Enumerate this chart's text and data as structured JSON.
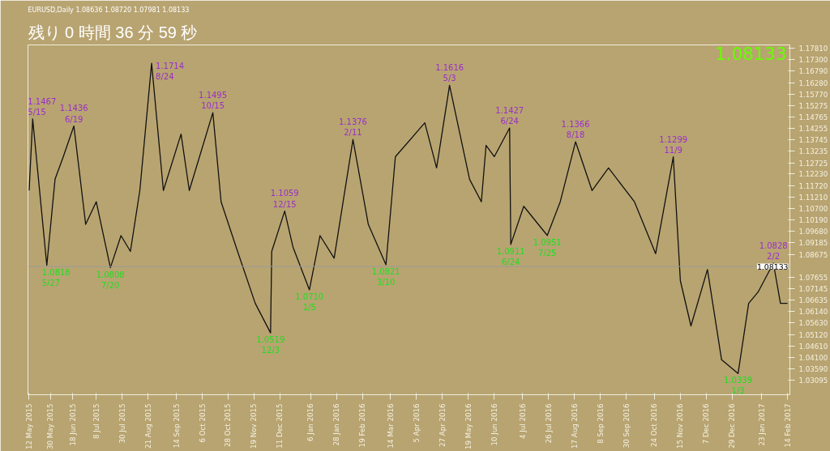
{
  "chart_data": {
    "type": "line",
    "title": "残り 0 時間 36 分 59 秒",
    "subtitle": "EURUSD,Daily 1.08636 1.08720 1.07981 1.08133",
    "x": [
      "2015-05-12",
      "2015-05-15",
      "2015-05-27",
      "2015-06-03",
      "2015-06-10",
      "2015-06-19",
      "2015-06-29",
      "2015-07-08",
      "2015-07-20",
      "2015-07-29",
      "2015-08-06",
      "2015-08-14",
      "2015-08-24",
      "2015-09-03",
      "2015-09-18",
      "2015-09-25",
      "2015-10-15",
      "2015-10-22",
      "2015-11-05",
      "2015-11-20",
      "2015-12-03",
      "2015-12-04",
      "2015-12-15",
      "2015-12-22",
      "2016-01-05",
      "2016-01-14",
      "2016-01-26",
      "2016-02-11",
      "2016-02-24",
      "2016-03-10",
      "2016-03-18",
      "2016-04-12",
      "2016-04-22",
      "2016-05-03",
      "2016-05-20",
      "2016-05-30",
      "2016-06-03",
      "2016-06-10",
      "2016-06-23",
      "2016-06-24",
      "2016-07-05",
      "2016-07-25",
      "2016-08-05",
      "2016-08-18",
      "2016-09-01",
      "2016-09-15",
      "2016-10-07",
      "2016-10-25",
      "2016-11-09",
      "2016-11-15",
      "2016-11-24",
      "2016-12-08",
      "2016-12-20",
      "2017-01-03",
      "2017-01-12",
      "2017-01-20",
      "2017-02-02",
      "2017-02-08",
      "2017-02-14"
    ],
    "series": [
      {
        "color": "#111111",
        "values": [
          1.115,
          1.1467,
          1.0818,
          1.12,
          1.13,
          1.1436,
          1.1,
          1.11,
          1.0808,
          1.095,
          1.088,
          1.115,
          1.1714,
          1.115,
          1.14,
          1.115,
          1.1495,
          1.11,
          1.088,
          1.065,
          1.0519,
          1.088,
          1.1059,
          1.09,
          1.071,
          1.095,
          1.085,
          1.1376,
          1.1,
          1.0821,
          1.13,
          1.145,
          1.125,
          1.1616,
          1.12,
          1.11,
          1.135,
          1.13,
          1.1427,
          1.0911,
          1.108,
          1.0951,
          1.11,
          1.1366,
          1.115,
          1.125,
          1.11,
          1.087,
          1.1299,
          1.075,
          1.055,
          1.08,
          1.04,
          1.0339,
          1.065,
          1.07,
          1.0828,
          1.065,
          1.065
        ]
      }
    ],
    "xlim": [
      "2015-05-11",
      "2017-02-16"
    ],
    "ylim": [
      1.0245,
      1.1795
    ],
    "xticks": [
      {
        "value": "2015-05-12",
        "label": "12 May 2015"
      },
      {
        "value": "2015-05-30",
        "label": "30 May 2015"
      },
      {
        "value": "2015-06-18",
        "label": "18 Jun 2015"
      },
      {
        "value": "2015-07-08",
        "label": "8 Jul 2015"
      },
      {
        "value": "2015-07-30",
        "label": "30 Jul 2015"
      },
      {
        "value": "2015-08-21",
        "label": "21 Aug 2015"
      },
      {
        "value": "2015-09-14",
        "label": "14 Sep 2015"
      },
      {
        "value": "2015-10-06",
        "label": "6 Oct 2015"
      },
      {
        "value": "2015-10-28",
        "label": "28 Oct 2015"
      },
      {
        "value": "2015-11-19",
        "label": "19 Nov 2015"
      },
      {
        "value": "2015-12-11",
        "label": "11 Dec 2015"
      },
      {
        "value": "2016-01-06",
        "label": "6 Jan 2016"
      },
      {
        "value": "2016-01-28",
        "label": "28 Jan 2016"
      },
      {
        "value": "2016-02-19",
        "label": "19 Feb 2016"
      },
      {
        "value": "2016-03-14",
        "label": "14 Mar 2016"
      },
      {
        "value": "2016-04-05",
        "label": "5 Apr 2016"
      },
      {
        "value": "2016-04-27",
        "label": "27 Apr 2016"
      },
      {
        "value": "2016-05-19",
        "label": "19 May 2016"
      },
      {
        "value": "2016-06-10",
        "label": "10 Jun 2016"
      },
      {
        "value": "2016-07-04",
        "label": "4 Jul 2016"
      },
      {
        "value": "2016-07-26",
        "label": "26 Jul 2016"
      },
      {
        "value": "2016-08-17",
        "label": "17 Aug 2016"
      },
      {
        "value": "2016-09-08",
        "label": "8 Sep 2016"
      },
      {
        "value": "2016-09-30",
        "label": "30 Sep 2016"
      },
      {
        "value": "2016-10-24",
        "label": "24 Oct 2016"
      },
      {
        "value": "2016-11-15",
        "label": "15 Nov 2016"
      },
      {
        "value": "2016-12-07",
        "label": "7 Dec 2016"
      },
      {
        "value": "2016-12-29",
        "label": "29 Dec 2016"
      },
      {
        "value": "2017-01-23",
        "label": "23 Jan 2017"
      },
      {
        "value": "2017-02-14",
        "label": "14 Feb 2017"
      }
    ],
    "yticks": [
      {
        "value": 1.1781,
        "label": "1.17810"
      },
      {
        "value": 1.173,
        "label": "1.17300"
      },
      {
        "value": 1.1679,
        "label": "1.16790"
      },
      {
        "value": 1.1628,
        "label": "1.16280"
      },
      {
        "value": 1.1577,
        "label": "1.15770"
      },
      {
        "value": 1.15275,
        "label": "1.15275"
      },
      {
        "value": 1.14765,
        "label": "1.14765"
      },
      {
        "value": 1.14255,
        "label": "1.14255"
      },
      {
        "value": 1.13745,
        "label": "1.13745"
      },
      {
        "value": 1.13235,
        "label": "1.13235"
      },
      {
        "value": 1.12725,
        "label": "1.12725"
      },
      {
        "value": 1.1223,
        "label": "1.12230"
      },
      {
        "value": 1.1172,
        "label": "1.11720"
      },
      {
        "value": 1.1121,
        "label": "1.11210"
      },
      {
        "value": 1.107,
        "label": "1.10700"
      },
      {
        "value": 1.1019,
        "label": "1.10190"
      },
      {
        "value": 1.0968,
        "label": "1.09680"
      },
      {
        "value": 1.09185,
        "label": "1.09185"
      },
      {
        "value": 1.08675,
        "label": "1.08675"
      },
      {
        "value": 1.07655,
        "label": "1.07655"
      },
      {
        "value": 1.07145,
        "label": "1.07145"
      },
      {
        "value": 1.06635,
        "label": "1.06635"
      },
      {
        "value": 1.0614,
        "label": "1.06140"
      },
      {
        "value": 1.0563,
        "label": "1.05630"
      },
      {
        "value": 1.0512,
        "label": "1.05120"
      },
      {
        "value": 1.0461,
        "label": "1.04610"
      },
      {
        "value": 1.041,
        "label": "1.04100"
      },
      {
        "value": 1.0359,
        "label": "1.03590"
      },
      {
        "value": 1.03095,
        "label": "1.03095"
      }
    ],
    "ref_lines": [
      {
        "axis": "y",
        "value": 1.08133,
        "label": "1.08133",
        "color": "#999999"
      }
    ],
    "grid": false,
    "annotations": [
      "1.08133",
      {
        "text": "1.1467\n5/15",
        "x": "2015-05-15",
        "y": 1.1467
      },
      {
        "text": "1.0818\n5/27",
        "x": "2015-05-27",
        "y": 1.0818
      },
      {
        "text": "1.1436\n6/19",
        "x": "2015-06-19",
        "y": 1.1436
      },
      {
        "text": "1.0808\n7/20",
        "x": "2015-07-20",
        "y": 1.0808
      },
      {
        "text": "1.1714\n8/24",
        "x": "2015-08-24",
        "y": 1.1714
      },
      {
        "text": "1.1495\n10/15",
        "x": "2015-10-15",
        "y": 1.1495
      },
      {
        "text": "1.0519\n12/3",
        "x": "2015-12-03",
        "y": 1.0519
      },
      {
        "text": "1.1059\n12/15",
        "x": "2015-12-15",
        "y": 1.1059
      },
      {
        "text": "1.0710\n1/5",
        "x": "2016-01-05",
        "y": 1.071
      },
      {
        "text": "1.1376\n2/11",
        "x": "2016-02-11",
        "y": 1.1376
      },
      {
        "text": "1.0821\n3/10",
        "x": "2016-03-10",
        "y": 1.0821
      },
      {
        "text": "1.1616\n5/3",
        "x": "2016-05-03",
        "y": 1.1616
      },
      {
        "text": "1.1427\n6/24",
        "x": "2016-06-23",
        "y": 1.1427
      },
      {
        "text": "1.0911\n6/24",
        "x": "2016-06-24",
        "y": 1.0911
      },
      {
        "text": "1.0951\n7/25",
        "x": "2016-07-25",
        "y": 1.0951
      },
      {
        "text": "1.1366\n8/18",
        "x": "2016-08-18",
        "y": 1.1366
      },
      {
        "text": "1.1299\n11/9",
        "x": "2016-11-09",
        "y": 1.1299
      },
      {
        "text": "1.0339\n1/3",
        "x": "2017-01-03",
        "y": 1.0339
      },
      {
        "text": "1.0828\n2/2",
        "x": "2017-02-02",
        "y": 1.0828
      }
    ]
  }
}
